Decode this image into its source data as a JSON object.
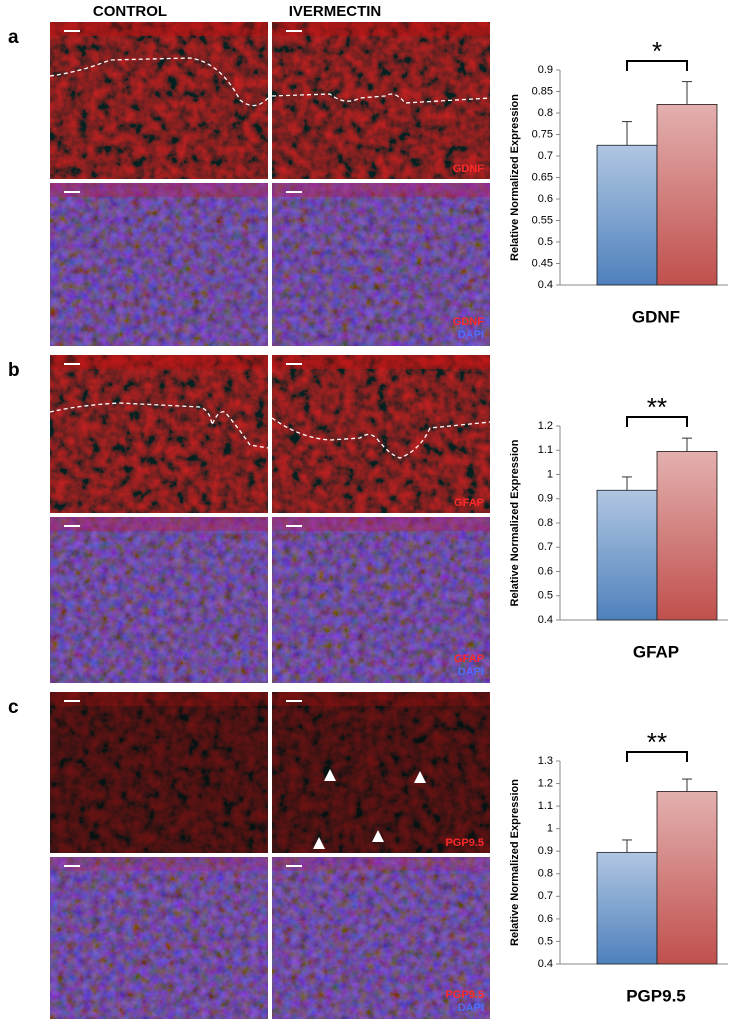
{
  "columns": [
    "CONTROL",
    "IVERMECTIN"
  ],
  "panels": [
    {
      "letter": "a",
      "stain_top": "GDNF",
      "stain_bottom": [
        "GDNF",
        "DAPI"
      ]
    },
    {
      "letter": "b",
      "stain_top": "GFAP",
      "stain_bottom": [
        "GFAP",
        "DAPI"
      ]
    },
    {
      "letter": "c",
      "stain_top": "PGP9.5",
      "stain_bottom": [
        "PGP9.5",
        "DAPI"
      ]
    }
  ],
  "chart_data": [
    {
      "type": "bar",
      "xlabel": "GDNF",
      "ylabel": "Relative Normalized Expression",
      "annotation": "*",
      "values": [
        0.725,
        0.82
      ],
      "errors": [
        0.055,
        0.053
      ],
      "colors": [
        "#4f81bd",
        "#c0504d"
      ],
      "ylim": [
        0.4,
        0.9
      ],
      "yticks": [
        0.4,
        0.45,
        0.5,
        0.55,
        0.6,
        0.65,
        0.7,
        0.75,
        0.8,
        0.85,
        0.9
      ]
    },
    {
      "type": "bar",
      "xlabel": "GFAP",
      "ylabel": "Relative Normalized Expression",
      "annotation": "**",
      "values": [
        0.935,
        1.095
      ],
      "errors": [
        0.055,
        0.055
      ],
      "colors": [
        "#4f81bd",
        "#c0504d"
      ],
      "ylim": [
        0.4,
        1.2
      ],
      "yticks": [
        0.4,
        0.5,
        0.6,
        0.7,
        0.8,
        0.9,
        1,
        1.1,
        1.2
      ]
    },
    {
      "type": "bar",
      "xlabel": "PGP9.5",
      "ylabel": "Relative Normalized Expression",
      "annotation": "**",
      "values": [
        0.895,
        1.165
      ],
      "errors": [
        0.055,
        0.055
      ],
      "colors": [
        "#4f81bd",
        "#c0504d"
      ],
      "ylim": [
        0.4,
        1.3
      ],
      "yticks": [
        0.4,
        0.5,
        0.6,
        0.7,
        0.8,
        0.9,
        1,
        1.1,
        1.2,
        1.3
      ]
    }
  ]
}
